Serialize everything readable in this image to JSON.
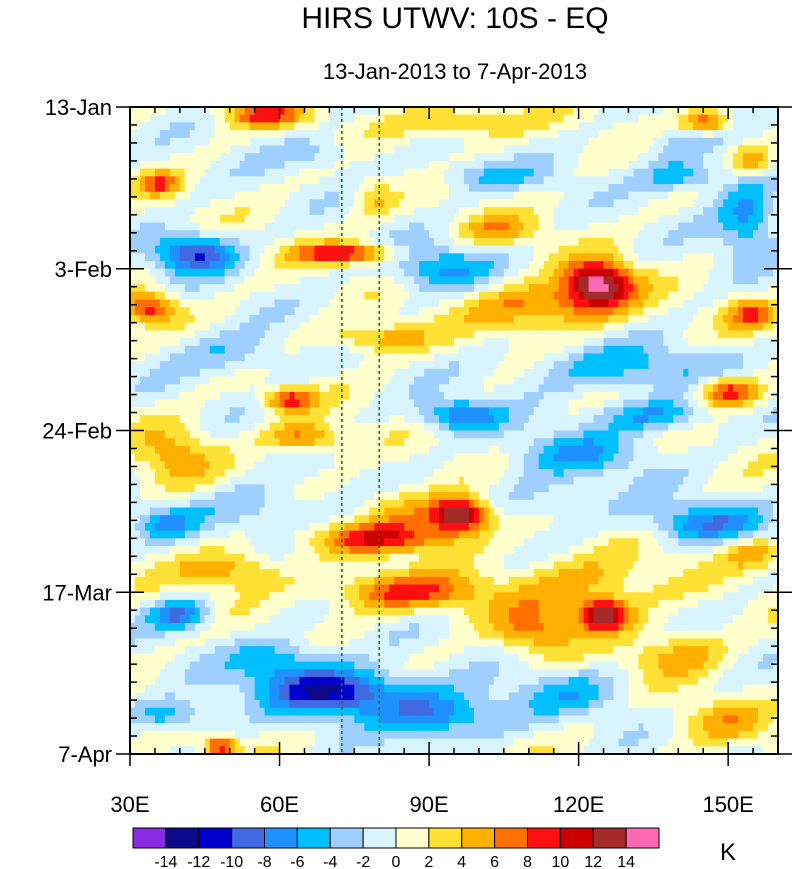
{
  "chart_data": {
    "type": "heatmap",
    "title": "HIRS UTWV: 10S - EQ",
    "subtitle": "13-Jan-2013 to 7-Apr-2013",
    "xlim": [
      30,
      160
    ],
    "ylim_days": [
      0,
      84
    ],
    "x_ticks": [
      {
        "value": 30,
        "label": "30E"
      },
      {
        "value": 60,
        "label": "60E"
      },
      {
        "value": 90,
        "label": "90E"
      },
      {
        "value": 120,
        "label": "120E"
      },
      {
        "value": 150,
        "label": "150E"
      }
    ],
    "y_ticks": [
      {
        "day": 0,
        "label": "13-Jan"
      },
      {
        "day": 21,
        "label": "3-Feb"
      },
      {
        "day": 42,
        "label": "24-Feb"
      },
      {
        "day": 63,
        "label": "17-Mar"
      },
      {
        "day": 84,
        "label": "7-Apr"
      }
    ],
    "reference_lines_lon": [
      72.5,
      80
    ],
    "colorbar": {
      "unit": "K",
      "levels": [
        -14,
        -12,
        -10,
        -8,
        -6,
        -4,
        -2,
        0,
        2,
        4,
        6,
        8,
        10,
        12,
        14
      ],
      "level_labels": [
        "-14",
        "-12",
        "-10",
        "-8",
        "-6",
        "-4",
        "-2",
        "0",
        "2",
        "4",
        "6",
        "8",
        "10",
        "12",
        "14"
      ],
      "colors": [
        "#8a2be2",
        "#0a0a8a",
        "#0000cd",
        "#4169e1",
        "#1e90ff",
        "#00bfff",
        "#9ecfff",
        "#d8f4ff",
        "#ffffcc",
        "#ffe135",
        "#ffb000",
        "#ff7000",
        "#ff1010",
        "#cc0000",
        "#a52a2a",
        "#ff69b4"
      ]
    },
    "features": [
      {
        "lon": 57,
        "day": 1,
        "amp": 8,
        "w": 8,
        "h": 1.5
      },
      {
        "lon": 95,
        "day": 2,
        "amp": 5,
        "w": 14,
        "h": 2
      },
      {
        "lon": 146,
        "day": 2,
        "amp": 8,
        "w": 5,
        "h": 1.5
      },
      {
        "lon": 36,
        "day": 10,
        "amp": 7,
        "w": 4,
        "h": 1.5
      },
      {
        "lon": 155,
        "day": 7,
        "amp": 6,
        "w": 4,
        "h": 2
      },
      {
        "lon": 68,
        "day": 6,
        "amp": -3,
        "w": 10,
        "h": 2
      },
      {
        "lon": 102,
        "day": 9,
        "amp": -4,
        "w": 12,
        "h": 2
      },
      {
        "lon": 141,
        "day": 9,
        "amp": -6,
        "w": 8,
        "h": 2
      },
      {
        "lon": 79,
        "day": 12,
        "amp": 4,
        "w": 4,
        "h": 2.5
      },
      {
        "lon": 154,
        "day": 14,
        "amp": -7,
        "w": 6,
        "h": 5
      },
      {
        "lon": 43,
        "day": 19,
        "amp": -10,
        "w": 8,
        "h": 2.5
      },
      {
        "lon": 73,
        "day": 19,
        "amp": 10,
        "w": 10,
        "h": 1.3
      },
      {
        "lon": 92,
        "day": 21,
        "amp": -6,
        "w": 10,
        "h": 3
      },
      {
        "lon": 124,
        "day": 23,
        "amp": 15,
        "w": 7,
        "h": 3
      },
      {
        "lon": 112,
        "day": 26,
        "amp": 7,
        "w": 14,
        "h": 3
      },
      {
        "lon": 155,
        "day": 27,
        "amp": 7,
        "w": 5,
        "h": 2
      },
      {
        "lon": 34,
        "day": 26,
        "amp": 9,
        "w": 5,
        "h": 2
      },
      {
        "lon": 80,
        "day": 30,
        "amp": 6,
        "w": 10,
        "h": 2
      },
      {
        "lon": 50,
        "day": 32,
        "amp": -4,
        "w": 12,
        "h": 3
      },
      {
        "lon": 128,
        "day": 34,
        "amp": -5,
        "w": 20,
        "h": 3
      },
      {
        "lon": 62,
        "day": 38,
        "amp": 9,
        "w": 5,
        "h": 1.5
      },
      {
        "lon": 150,
        "day": 37,
        "amp": 10,
        "w": 6,
        "h": 2
      },
      {
        "lon": 96,
        "day": 40,
        "amp": -8,
        "w": 8,
        "h": 2
      },
      {
        "lon": 135,
        "day": 40,
        "amp": -6,
        "w": 12,
        "h": 2
      },
      {
        "lon": 39,
        "day": 45,
        "amp": 5,
        "w": 8,
        "h": 4
      },
      {
        "lon": 65,
        "day": 43,
        "amp": 7,
        "w": 8,
        "h": 2
      },
      {
        "lon": 120,
        "day": 45,
        "amp": -5,
        "w": 14,
        "h": 3
      },
      {
        "lon": 55,
        "day": 52,
        "amp": -4,
        "w": 12,
        "h": 3
      },
      {
        "lon": 84,
        "day": 52,
        "amp": 4,
        "w": 8,
        "h": 3
      },
      {
        "lon": 96,
        "day": 53,
        "amp": 16,
        "w": 6,
        "h": 2.2
      },
      {
        "lon": 82,
        "day": 56,
        "amp": 9,
        "w": 14,
        "h": 2
      },
      {
        "lon": 115,
        "day": 51,
        "amp": -3,
        "w": 12,
        "h": 3
      },
      {
        "lon": 145,
        "day": 54,
        "amp": -7,
        "w": 12,
        "h": 2.5
      },
      {
        "lon": 37,
        "day": 54,
        "amp": -5,
        "w": 6,
        "h": 2
      },
      {
        "lon": 50,
        "day": 60,
        "amp": 6,
        "w": 10,
        "h": 2.5
      },
      {
        "lon": 85,
        "day": 63,
        "amp": 8,
        "w": 16,
        "h": 2.5
      },
      {
        "lon": 121,
        "day": 62,
        "amp": 5,
        "w": 16,
        "h": 4
      },
      {
        "lon": 125,
        "day": 66,
        "amp": 13,
        "w": 5,
        "h": 2
      },
      {
        "lon": 111,
        "day": 68,
        "amp": 6,
        "w": 8,
        "h": 3
      },
      {
        "lon": 40,
        "day": 66,
        "amp": -8,
        "w": 6,
        "h": 2
      },
      {
        "lon": 60,
        "day": 72,
        "amp": -6,
        "w": 10,
        "h": 3
      },
      {
        "lon": 72,
        "day": 76,
        "amp": -12,
        "w": 14,
        "h": 3
      },
      {
        "lon": 93,
        "day": 79,
        "amp": -8,
        "w": 12,
        "h": 3
      },
      {
        "lon": 38,
        "day": 79,
        "amp": -6,
        "w": 8,
        "h": 2
      },
      {
        "lon": 118,
        "day": 76,
        "amp": -4,
        "w": 12,
        "h": 3
      },
      {
        "lon": 140,
        "day": 71,
        "amp": 5,
        "w": 10,
        "h": 3
      },
      {
        "lon": 150,
        "day": 80,
        "amp": 4,
        "w": 10,
        "h": 3
      },
      {
        "lon": 48,
        "day": 83,
        "amp": 10,
        "w": 3,
        "h": 1.2
      },
      {
        "lon": 155,
        "day": 58,
        "amp": 5,
        "w": 6,
        "h": 2
      },
      {
        "lon": 104,
        "day": 16,
        "amp": 5,
        "w": 8,
        "h": 2
      },
      {
        "lon": 140,
        "day": 5,
        "amp": -3,
        "w": 8,
        "h": 2
      }
    ]
  }
}
